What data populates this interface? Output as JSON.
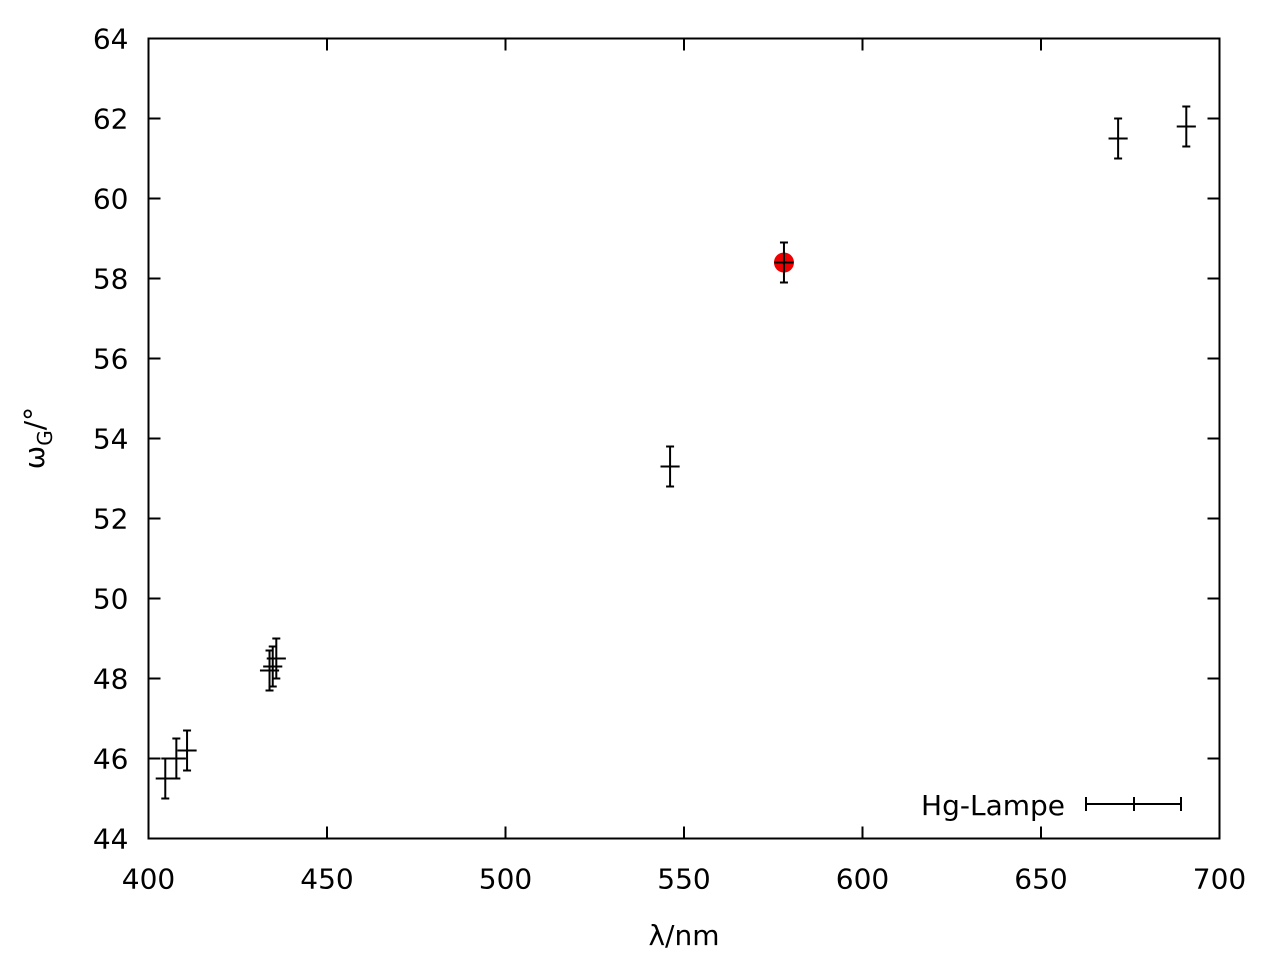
{
  "chart_data": {
    "type": "scatter",
    "xlabel": "λ/nm",
    "ylabel": {
      "base": "ω",
      "subscript": "G",
      "suffix": "/°"
    },
    "xlim": [
      400,
      700
    ],
    "ylim": [
      44,
      64
    ],
    "x_ticks": [
      400,
      450,
      500,
      550,
      600,
      650,
      700
    ],
    "y_ticks": [
      44,
      46,
      48,
      50,
      52,
      54,
      56,
      58,
      60,
      62,
      64
    ],
    "grid": false,
    "legend_position": "bottom-right",
    "series": [
      {
        "name": "Hg-Lampe",
        "color": "#000000",
        "points": [
          {
            "x": 404.7,
            "y": 45.5,
            "x_err": 1.0,
            "y_err": 0.5
          },
          {
            "x": 407.8,
            "y": 46.0,
            "x_err": 1.0,
            "y_err": 0.5
          },
          {
            "x": 410.8,
            "y": 46.2,
            "x_err": 1.0,
            "y_err": 0.5
          },
          {
            "x": 433.9,
            "y": 48.2,
            "x_err": 1.0,
            "y_err": 0.5
          },
          {
            "x": 434.8,
            "y": 48.3,
            "x_err": 1.0,
            "y_err": 0.5
          },
          {
            "x": 435.8,
            "y": 48.5,
            "x_err": 1.0,
            "y_err": 0.5
          },
          {
            "x": 546.1,
            "y": 53.3,
            "x_err": 1.0,
            "y_err": 0.5
          },
          {
            "x": 578.0,
            "y": 58.4,
            "x_err": 1.0,
            "y_err": 0.5
          },
          {
            "x": 671.6,
            "y": 61.5,
            "x_err": 1.0,
            "y_err": 0.5
          },
          {
            "x": 690.7,
            "y": 61.8,
            "x_err": 1.0,
            "y_err": 0.5
          }
        ]
      }
    ],
    "highlight": {
      "x": 578.0,
      "y": 58.4,
      "color": "#ee0000"
    }
  }
}
